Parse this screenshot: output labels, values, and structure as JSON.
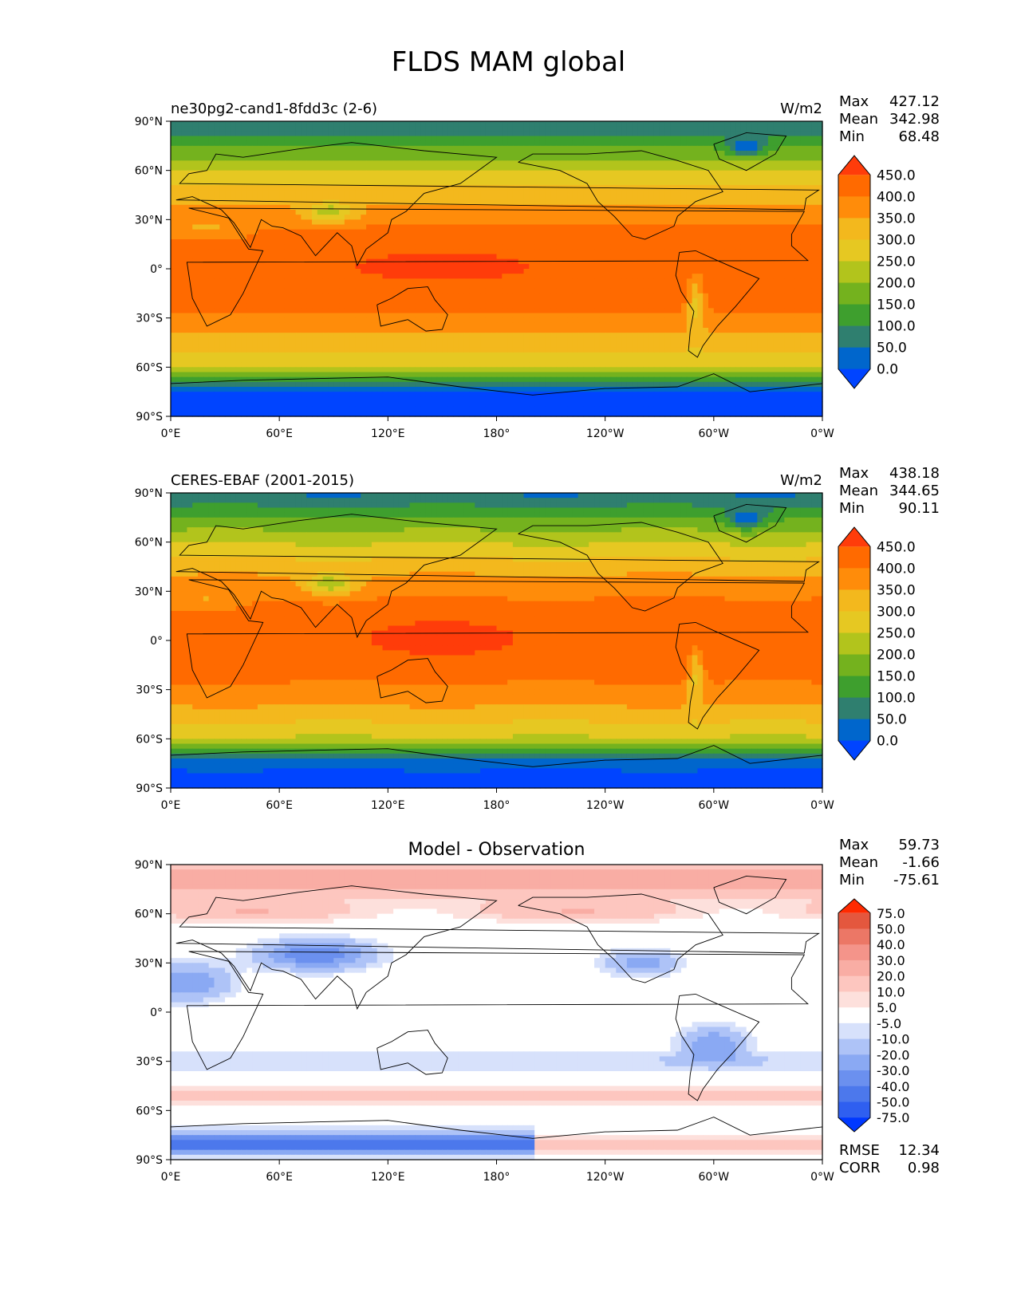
{
  "title": "FLDS MAM global",
  "colors": {
    "abs_levels": [
      "#0044ff",
      "#0066cc",
      "#2f7f6f",
      "#3e9f2e",
      "#74b21e",
      "#b2c41c",
      "#e6c822",
      "#f3b81d",
      "#ff8c0a",
      "#ff6a00",
      "#ff3c0a"
    ],
    "diff_levels": [
      "#0038ff",
      "#2f5ff0",
      "#4c78ec",
      "#6b90ef",
      "#8aa9f3",
      "#aec3f7",
      "#d7e1fb",
      "#ffffff",
      "#fde0dc",
      "#fdc6bf",
      "#f9ada4",
      "#f4948a",
      "#ec7766",
      "#e4573e",
      "#ff2a00"
    ]
  },
  "panels": [
    {
      "id": "model",
      "left_label": "ne30pg2-cand1-8fdd3c (2-6)",
      "right_label": "W/m2",
      "center_label": "",
      "stats": [
        [
          "Max",
          "427.12"
        ],
        [
          "Mean",
          "342.98"
        ],
        [
          "Min",
          "68.48"
        ]
      ],
      "colorbar": {
        "labels": [
          "450.0",
          "400.0",
          "350.0",
          "300.0",
          "250.0",
          "200.0",
          "150.0",
          "100.0",
          "50.0",
          "0.0"
        ]
      }
    },
    {
      "id": "obs",
      "left_label": "CERES-EBAF (2001-2015)",
      "right_label": "W/m2",
      "center_label": "",
      "stats": [
        [
          "Max",
          "438.18"
        ],
        [
          "Mean",
          "344.65"
        ],
        [
          "Min",
          "90.11"
        ]
      ],
      "colorbar": {
        "labels": [
          "450.0",
          "400.0",
          "350.0",
          "300.0",
          "250.0",
          "200.0",
          "150.0",
          "100.0",
          "50.0",
          "0.0"
        ]
      }
    },
    {
      "id": "diff",
      "left_label": "",
      "right_label": "",
      "center_label": "Model - Observation",
      "stats": [
        [
          "Max",
          "59.73"
        ],
        [
          "Mean",
          "-1.66"
        ],
        [
          "Min",
          "-75.61"
        ]
      ],
      "extra_stats": [
        [
          "RMSE",
          "12.34"
        ],
        [
          "CORR",
          "0.98"
        ]
      ],
      "colorbar": {
        "labels": [
          "75.0",
          "50.0",
          "40.0",
          "30.0",
          "20.0",
          "10.0",
          "5.0",
          "-5.0",
          "-10.0",
          "-20.0",
          "-30.0",
          "-40.0",
          "-50.0",
          "-75.0"
        ]
      }
    }
  ],
  "axes": {
    "lat_ticks": [
      "90°N",
      "60°N",
      "30°N",
      "0°",
      "30°S",
      "60°S",
      "90°S"
    ],
    "lon_ticks": [
      "0°E",
      "60°E",
      "120°E",
      "180°",
      "120°W",
      "60°W",
      "0°W"
    ]
  }
}
